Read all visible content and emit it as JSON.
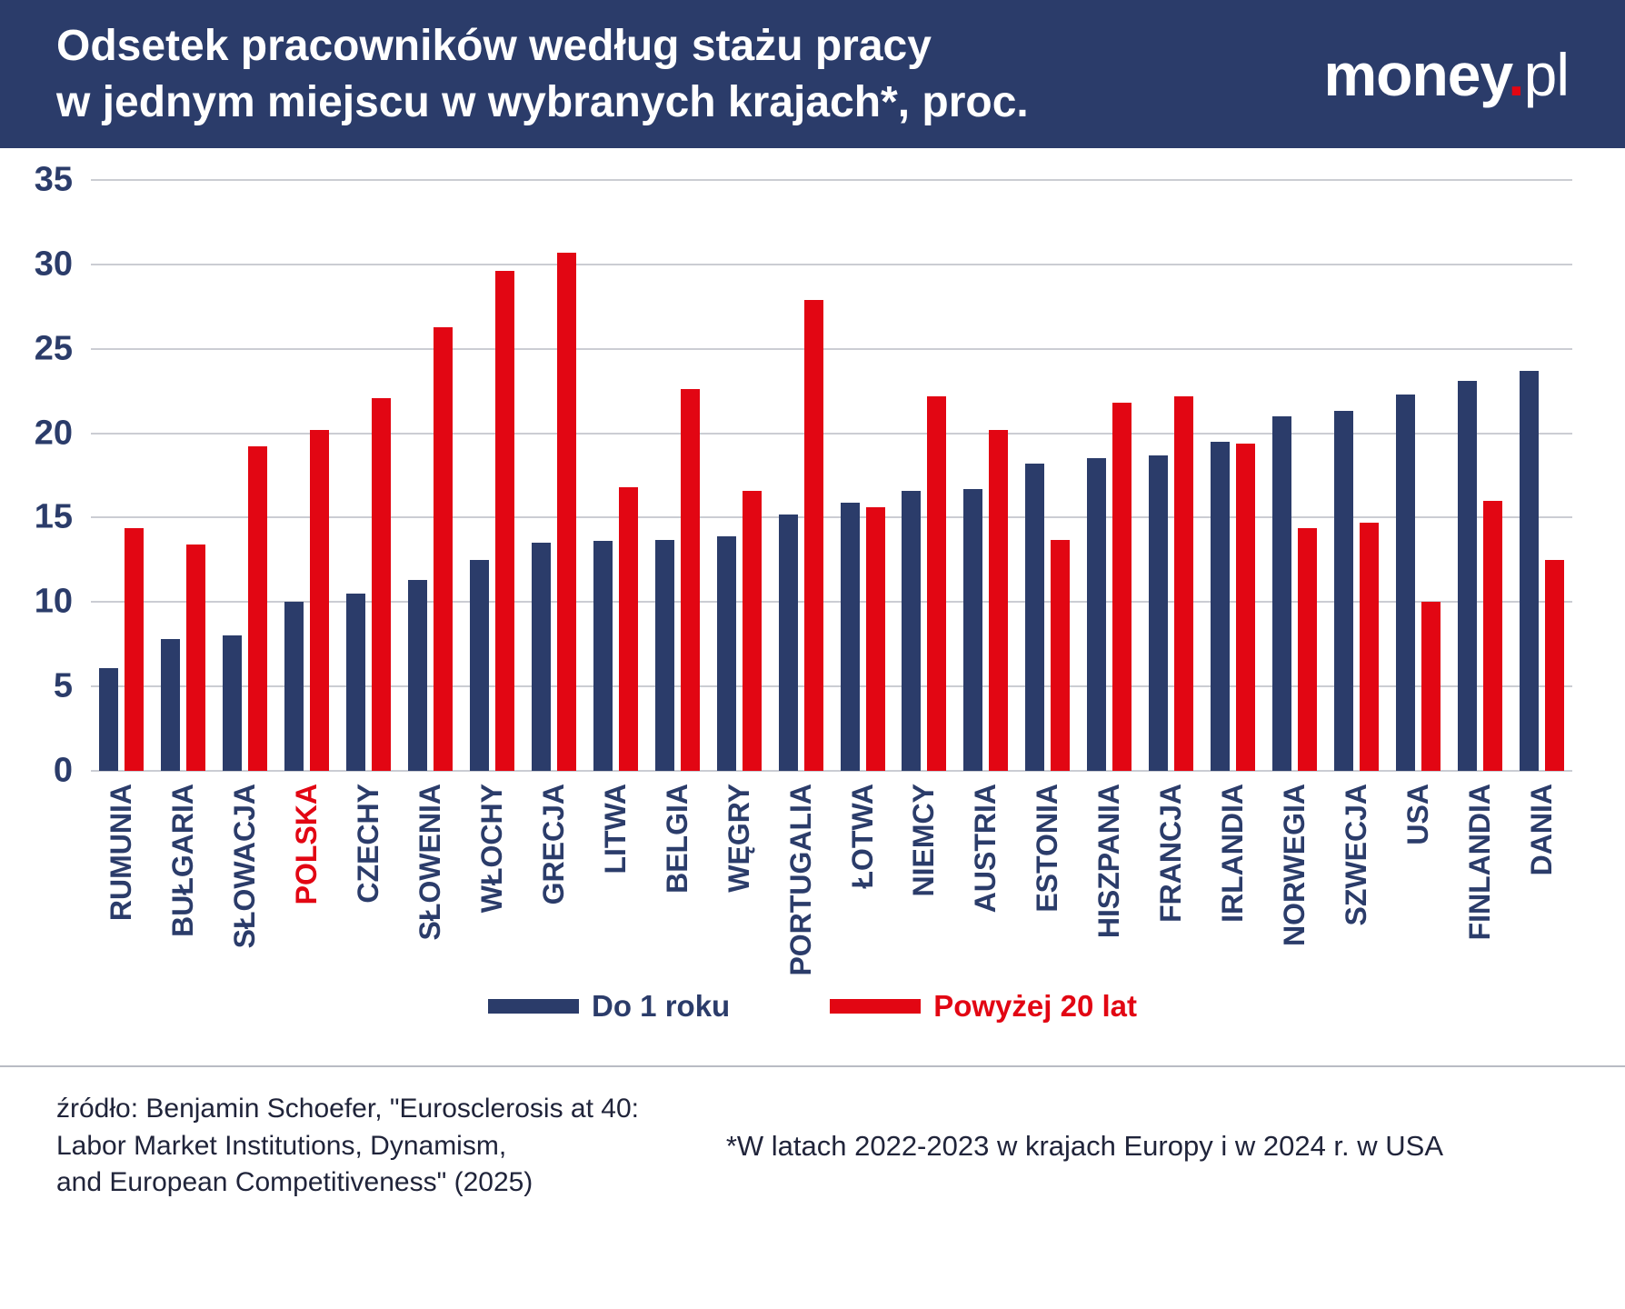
{
  "header": {
    "title_line1": "Odsetek pracowników według stażu pracy",
    "title_line2": "w jednym miejscu w wybranych krajach*, proc.",
    "logo_money": "money",
    "logo_dot": ".",
    "logo_pl": "pl"
  },
  "colors": {
    "navy": "#2b3c6a",
    "red": "#e20613",
    "grid": "#cbcdd3",
    "header_bg": "#2b3c6a",
    "highlight_label": "#e20613"
  },
  "chart_data": {
    "type": "bar",
    "title": "Odsetek pracowników według stażu pracy w jednym miejscu w wybranych krajach*, proc.",
    "categories": [
      "RUMUNIA",
      "BUŁGARIA",
      "SŁOWACJA",
      "POLSKA",
      "CZECHY",
      "SŁOWENIA",
      "WŁOCHY",
      "GRECJA",
      "LITWA",
      "BELGIA",
      "WĘGRY",
      "PORTUGALIA",
      "ŁOTWA",
      "NIEMCY",
      "AUSTRIA",
      "ESTONIA",
      "HISZPANIA",
      "FRANCJA",
      "IRLANDIA",
      "NORWEGIA",
      "SZWECJA",
      "USA",
      "FINLANDIA",
      "DANIA"
    ],
    "highlighted_category": "POLSKA",
    "series": [
      {
        "name": "Do 1 roku",
        "color": "#2b3c6a",
        "values": [
          6.1,
          7.8,
          8.0,
          10.0,
          10.5,
          11.3,
          12.5,
          13.5,
          13.6,
          13.7,
          13.9,
          15.2,
          15.9,
          16.6,
          16.7,
          18.2,
          18.5,
          18.7,
          19.5,
          21.0,
          21.3,
          22.3,
          23.1,
          23.7
        ]
      },
      {
        "name": "Powyżej 20 lat",
        "color": "#e20613",
        "values": [
          14.4,
          13.4,
          19.2,
          20.2,
          22.1,
          26.3,
          29.6,
          30.7,
          16.8,
          22.6,
          16.6,
          27.9,
          15.6,
          22.2,
          20.2,
          13.7,
          21.8,
          22.2,
          19.4,
          14.4,
          14.7,
          10.0,
          16.0,
          12.5
        ]
      }
    ],
    "ylim": [
      0,
      35
    ],
    "yticks": [
      0,
      5,
      10,
      15,
      20,
      25,
      30,
      35
    ],
    "grid": true,
    "legend_position": "bottom"
  },
  "legend": {
    "items": [
      {
        "label": "Do 1 roku",
        "color": "#2b3c6a"
      },
      {
        "label": "Powyżej 20 lat",
        "color": "#e20613"
      }
    ]
  },
  "footer": {
    "source_lines": [
      "źródło: Benjamin Schoefer, \"Eurosclerosis at 40:",
      "Labor Market Institutions, Dynamism,",
      "and European Competitiveness\" (2025)"
    ],
    "note": "*W latach 2022-2023 w krajach Europy i w 2024 r. w USA"
  }
}
